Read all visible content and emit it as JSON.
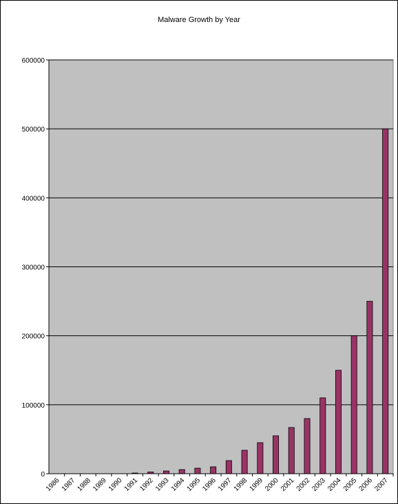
{
  "chart_data": {
    "type": "bar",
    "title": "Malware Growth by Year",
    "xlabel": "",
    "ylabel": "",
    "categories": [
      "1986",
      "1987",
      "1988",
      "1989",
      "1990",
      "1991",
      "1992",
      "1993",
      "1994",
      "1995",
      "1996",
      "1997",
      "1998",
      "1999",
      "2000",
      "2001",
      "2002",
      "2003",
      "2004",
      "2005",
      "2006",
      "2007"
    ],
    "values": [
      1,
      3,
      5,
      7,
      10,
      1000,
      2500,
      4000,
      6000,
      8000,
      10000,
      19000,
      34000,
      45000,
      55000,
      67000,
      80000,
      110000,
      150000,
      200000,
      250000,
      500000
    ],
    "ylim": [
      0,
      600000
    ],
    "yticks": [
      "0",
      "100000",
      "200000",
      "300000",
      "400000",
      "500000",
      "600000"
    ],
    "grid": true,
    "legend": "none",
    "colors": {
      "plot_background": "#c0c0c0",
      "bar_fill": "#993366",
      "bar_stroke": "#000000",
      "gridline": "#000000"
    }
  }
}
